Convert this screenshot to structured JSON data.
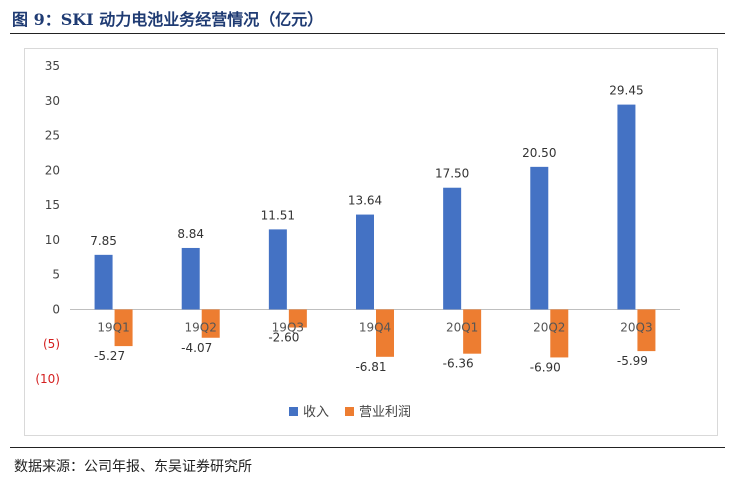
{
  "figure": {
    "title": "图 9：SKI 动力电池业务经营情况（亿元）",
    "source": "数据来源：公司年报、东吴证券研究所"
  },
  "colors": {
    "revenue": "#4472C4",
    "profit": "#ED7D31",
    "negative_tick": "#D42020"
  },
  "chart_data": {
    "type": "bar",
    "title": "",
    "xlabel": "",
    "ylabel": "",
    "ylim": [
      -10,
      35
    ],
    "yticks": [
      35,
      30,
      25,
      20,
      15,
      10,
      5,
      0,
      -5,
      -10
    ],
    "ytick_labels": [
      "35",
      "30",
      "25",
      "20",
      "15",
      "10",
      "5",
      "0",
      "(5)",
      "(10)"
    ],
    "grid": false,
    "legend_position": "bottom-center",
    "categories": [
      "19Q1",
      "19Q2",
      "19Q3",
      "19Q4",
      "20Q1",
      "20Q2",
      "20Q3"
    ],
    "series": [
      {
        "name": "收入",
        "values": [
          7.85,
          8.84,
          11.51,
          13.64,
          17.5,
          20.5,
          29.45
        ],
        "labels": [
          "7.85",
          "8.84",
          "11.51",
          "13.64",
          "17.50",
          "20.50",
          "29.45"
        ]
      },
      {
        "name": "营业利润",
        "values": [
          -5.27,
          -4.07,
          -2.6,
          -6.81,
          -6.36,
          -6.9,
          -5.99
        ],
        "labels": [
          "-5.27",
          "-4.07",
          "-2.60",
          "-6.81",
          "-6.36",
          "-6.90",
          "-5.99"
        ]
      }
    ]
  }
}
